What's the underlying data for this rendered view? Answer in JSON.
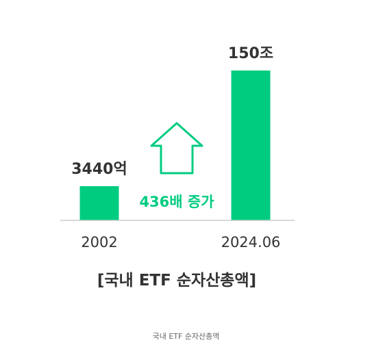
{
  "chart_data": {
    "type": "bar",
    "categories": [
      "2002",
      "2024.06"
    ],
    "values": [
      3440,
      1500000
    ],
    "value_labels": [
      "3440억",
      "150조"
    ],
    "unit": "억원",
    "title": "[국내 ETF 순자산총액]",
    "annotation": "436배 증가",
    "annotation_icon": "up-arrow-outline-icon",
    "ylim": [
      0,
      1500000
    ],
    "grid": false,
    "legend": "none",
    "bar_color": "#00CC80",
    "text_color": "#333333"
  },
  "caption": "국내 ETF 순자산총액"
}
